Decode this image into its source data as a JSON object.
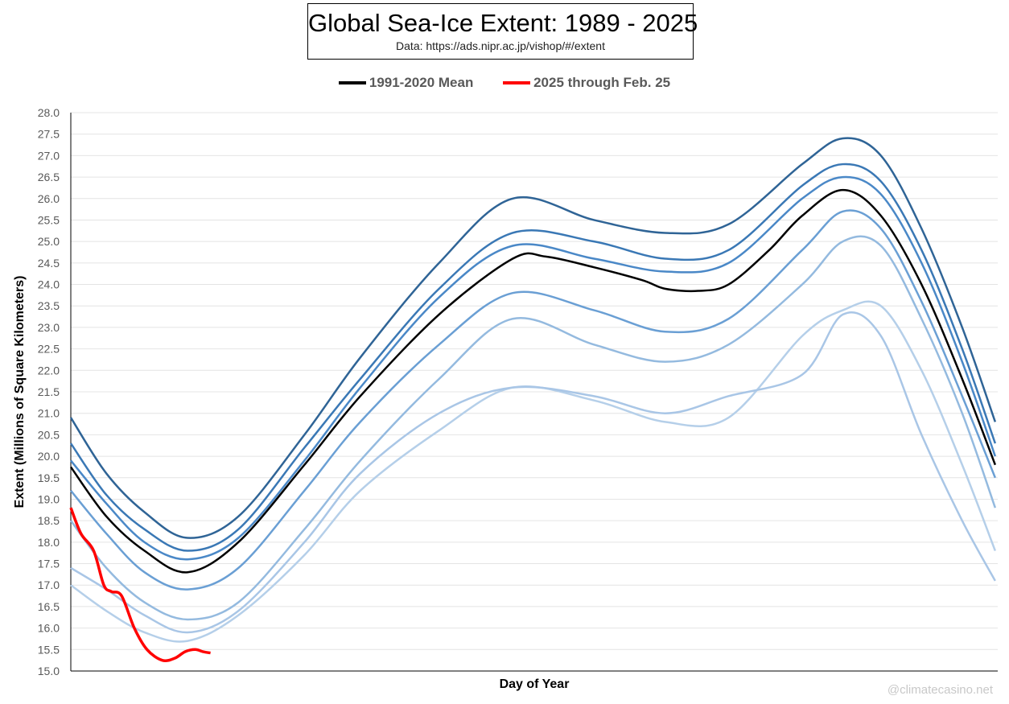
{
  "chart_data": {
    "type": "line",
    "title": "Global Sea-Ice Extent: 1989 - 2025",
    "subtitle": "Data: https://ads.nipr.ac.jp/vishop/#/extent",
    "xlabel": "Day of Year",
    "ylabel": "Extent (Millions of Square Kilometers)",
    "xlim": [
      1,
      366
    ],
    "ylim": [
      15.0,
      28.0
    ],
    "yticks": [
      "15.0",
      "15.5",
      "16.0",
      "16.5",
      "17.0",
      "17.5",
      "18.0",
      "18.5",
      "19.0",
      "19.5",
      "20.0",
      "20.5",
      "21.0",
      "21.5",
      "22.0",
      "22.5",
      "23.0",
      "23.5",
      "24.0",
      "24.5",
      "25.0",
      "25.5",
      "26.0",
      "26.5",
      "27.0",
      "27.5",
      "28.0"
    ],
    "grid": true,
    "legend_position": "top",
    "x": [
      1,
      15,
      30,
      47,
      67,
      93,
      115,
      146,
      175,
      207,
      235,
      260,
      289,
      305,
      320,
      336,
      352,
      365
    ],
    "historical_series": [
      {
        "color": "#2f6496",
        "values": [
          20.9,
          19.6,
          18.7,
          18.1,
          18.6,
          20.5,
          22.3,
          24.5,
          26.0,
          25.5,
          25.2,
          25.4,
          26.8,
          27.4,
          27.0,
          25.3,
          23.0,
          20.8
        ]
      },
      {
        "color": "#3a78b5",
        "values": [
          20.3,
          19.1,
          18.3,
          17.8,
          18.3,
          20.2,
          21.8,
          23.9,
          25.2,
          25.0,
          24.6,
          24.8,
          26.3,
          26.8,
          26.4,
          24.8,
          22.5,
          20.3
        ]
      },
      {
        "color": "#4a88c7",
        "values": [
          19.9,
          18.9,
          18.0,
          17.6,
          18.1,
          19.9,
          21.6,
          23.7,
          24.9,
          24.6,
          24.3,
          24.5,
          26.0,
          26.5,
          26.1,
          24.5,
          22.2,
          20.0
        ]
      },
      {
        "color": "#6a9fd4",
        "values": [
          19.2,
          18.2,
          17.3,
          16.9,
          17.4,
          19.2,
          20.8,
          22.6,
          23.8,
          23.4,
          22.9,
          23.2,
          24.8,
          25.7,
          25.3,
          23.6,
          21.4,
          19.5
        ]
      },
      {
        "color": "#94badf",
        "values": [
          18.5,
          17.4,
          16.6,
          16.2,
          16.6,
          18.3,
          19.9,
          21.8,
          23.2,
          22.6,
          22.2,
          22.6,
          24.0,
          25.0,
          24.9,
          23.2,
          21.0,
          18.8
        ]
      },
      {
        "color": "#b5cfe9",
        "values": [
          17.0,
          16.4,
          15.9,
          15.7,
          16.3,
          17.7,
          19.2,
          20.6,
          21.6,
          21.3,
          20.8,
          20.9,
          22.8,
          23.4,
          23.5,
          22.0,
          19.8,
          17.8
        ]
      },
      {
        "color": "#a9c6e6",
        "values": [
          17.4,
          16.9,
          16.3,
          15.9,
          16.4,
          18.0,
          19.6,
          21.0,
          21.6,
          21.4,
          21.0,
          21.4,
          21.9,
          23.3,
          22.8,
          20.5,
          18.5,
          17.1
        ]
      }
    ],
    "series": [
      {
        "name": "1991-2020 Mean",
        "color": "#000000",
        "x": [
          1,
          15,
          30,
          47,
          67,
          93,
          115,
          146,
          175,
          188,
          207,
          226,
          235,
          248,
          260,
          276,
          289,
          305,
          320,
          336,
          352,
          365
        ],
        "values": [
          19.75,
          18.6,
          17.8,
          17.3,
          18.0,
          19.8,
          21.4,
          23.3,
          24.6,
          24.65,
          24.4,
          24.1,
          23.9,
          23.85,
          24.0,
          24.8,
          25.6,
          26.2,
          25.6,
          24.0,
          21.8,
          19.8
        ]
      },
      {
        "name": "2025 through Feb. 25",
        "color": "#ff0000",
        "x": [
          1,
          5,
          10,
          14,
          17,
          21,
          26,
          31,
          37,
          42,
          46,
          50,
          53,
          56
        ],
        "values": [
          18.8,
          18.2,
          17.8,
          17.0,
          16.85,
          16.75,
          16.0,
          15.5,
          15.25,
          15.3,
          15.45,
          15.5,
          15.45,
          15.42
        ]
      }
    ]
  },
  "credit": "@climatecasino.net"
}
